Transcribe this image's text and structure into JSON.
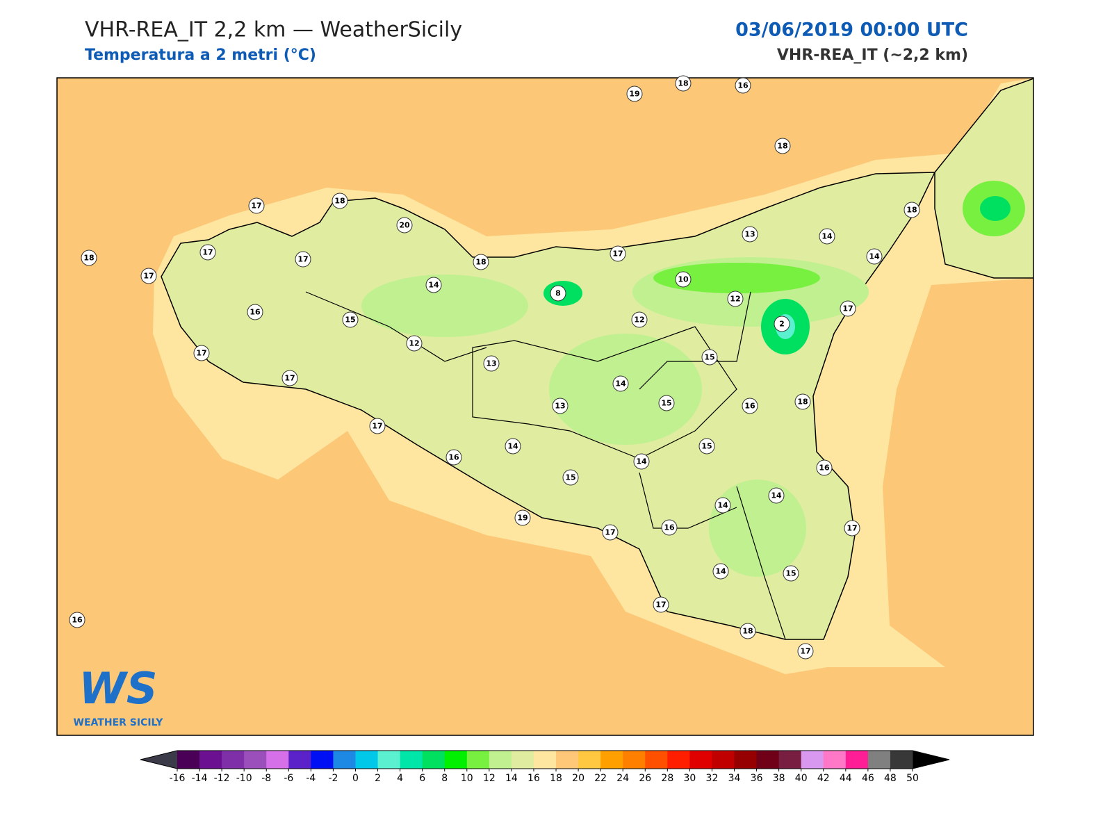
{
  "header": {
    "title": "VHR-REA_IT 2,2 km — WeatherSicily",
    "subtitle": "Temperatura a 2 metri (°C)",
    "date": "03/06/2019 00:00 UTC",
    "model": "VHR-REA_IT (~2,2 km)"
  },
  "stations": [
    19,
    18,
    16,
    18,
    17,
    18,
    20,
    18,
    17,
    17,
    17,
    18,
    17,
    13,
    14,
    18,
    14,
    14,
    8,
    10,
    12,
    17,
    2,
    16,
    15,
    12,
    12,
    17,
    17,
    13,
    15,
    14,
    15,
    16,
    18,
    13,
    17,
    14,
    15,
    16,
    14,
    16,
    15,
    14,
    14,
    19,
    17,
    16,
    17,
    14,
    15,
    17,
    18,
    17,
    16
  ],
  "colorbar": {
    "ticks": [
      -16,
      -14,
      -12,
      -10,
      -8,
      -6,
      -4,
      -2,
      0,
      2,
      4,
      6,
      8,
      10,
      12,
      14,
      16,
      18,
      20,
      22,
      24,
      26,
      28,
      30,
      32,
      34,
      36,
      38,
      40,
      42,
      44,
      46,
      48,
      50
    ],
    "colors": [
      "#4b0058",
      "#6a1090",
      "#7f30a8",
      "#9b4fbb",
      "#d670e8",
      "#5a22c8",
      "#0010f5",
      "#1e88e5",
      "#00c8e8",
      "#5af0d0",
      "#00e6a8",
      "#00e060",
      "#00f000",
      "#78f040",
      "#c0f090",
      "#e0eca0",
      "#ffe6a0",
      "#ffc878",
      "#ffc840",
      "#ffa000",
      "#ff8000",
      "#ff5000",
      "#ff1e00",
      "#e00000",
      "#c00000",
      "#960000",
      "#700018",
      "#781e40",
      "#d898f0",
      "#ff78c8",
      "#ff1e96",
      "#808080",
      "#383838"
    ],
    "under": "#3a3a48",
    "over": "#000000"
  },
  "logo": {
    "mark": "WS",
    "text": "WEATHER SICILY"
  }
}
